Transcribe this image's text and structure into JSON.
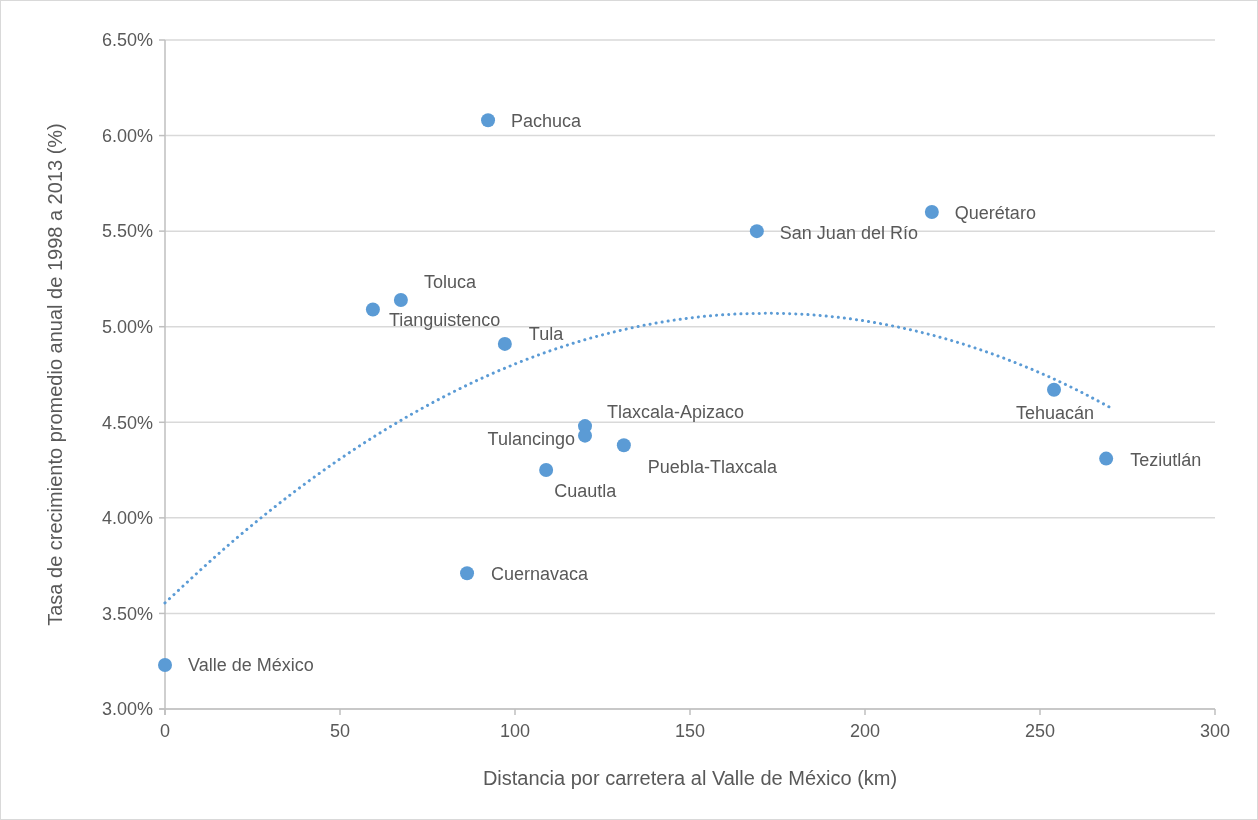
{
  "chart_data": {
    "type": "scatter",
    "xlabel": "Distancia por carretera al Valle de México (km)",
    "ylabel": "Tasa de crecimiento promedio anual de 1998 a 2013 (%)",
    "xlim": [
      0,
      300
    ],
    "xticks": [
      0,
      50,
      100,
      150,
      200,
      250,
      300
    ],
    "ylim": [
      3,
      6.5
    ],
    "yticks": [
      {
        "value": 3,
        "label": "3.00%"
      },
      {
        "value": 3.5,
        "label": "3.50%"
      },
      {
        "value": 4,
        "label": "4.00%"
      },
      {
        "value": 4.5,
        "label": "4.50%"
      },
      {
        "value": 5,
        "label": "5.00%"
      },
      {
        "value": 5.5,
        "label": "5.50%"
      },
      {
        "value": 6,
        "label": "6.00%"
      },
      {
        "value": 6.5,
        "label": "6.50%"
      }
    ],
    "grid": "y",
    "series": [
      {
        "color": "#5b9bd5",
        "marker": "circle",
        "x": [
          0,
          86.3,
          92.3,
          67.4,
          59.4,
          97.1,
          120,
          120,
          131.1,
          108.9,
          169.1,
          219.1,
          254,
          268.9
        ],
        "values": [
          3.23,
          3.71,
          6.08,
          5.14,
          5.09,
          4.91,
          4.48,
          4.43,
          4.38,
          4.25,
          5.5,
          5.6,
          4.67,
          4.31
        ]
      },
      {
        "type": "line",
        "color": "#5b9bd5",
        "marker": "none",
        "line_style": "dotted",
        "x": [
          0,
          20,
          40,
          60,
          80,
          100,
          120,
          140,
          160,
          172,
          180,
          200,
          220,
          240,
          260,
          270
        ],
        "values": [
          3.555,
          3.887,
          4.178,
          4.428,
          4.637,
          4.805,
          4.932,
          5.018,
          5.063,
          5.07,
          5.067,
          5.03,
          4.952,
          4.833,
          4.674,
          4.578
        ]
      }
    ],
    "annotations": [
      {
        "text": "Valle de México",
        "x": 0,
        "y": 3.23
      },
      {
        "text": "Cuernavaca",
        "x": 86.3,
        "y": 3.71
      },
      {
        "text": "Pachuca",
        "x": 92.3,
        "y": 6.08
      },
      {
        "text": "Toluca",
        "x": 67.4,
        "y": 5.14
      },
      {
        "text": "Tianguistenco",
        "x": 59.4,
        "y": 5.09
      },
      {
        "text": "Tula",
        "x": 97.1,
        "y": 4.91
      },
      {
        "text": "Tlaxcala-Apizaco",
        "x": 120,
        "y": 4.48
      },
      {
        "text": "Tulancingo",
        "x": 120,
        "y": 4.43
      },
      {
        "text": "Puebla-Tlaxcala",
        "x": 131.1,
        "y": 4.38
      },
      {
        "text": "Cuautla",
        "x": 108.9,
        "y": 4.25
      },
      {
        "text": "San Juan del Río",
        "x": 169.1,
        "y": 5.5
      },
      {
        "text": "Querétaro",
        "x": 219.1,
        "y": 5.6
      },
      {
        "text": "Tehuacán",
        "x": 254,
        "y": 4.67
      },
      {
        "text": "Teziutlán",
        "x": 268.9,
        "y": 4.31
      }
    ]
  }
}
